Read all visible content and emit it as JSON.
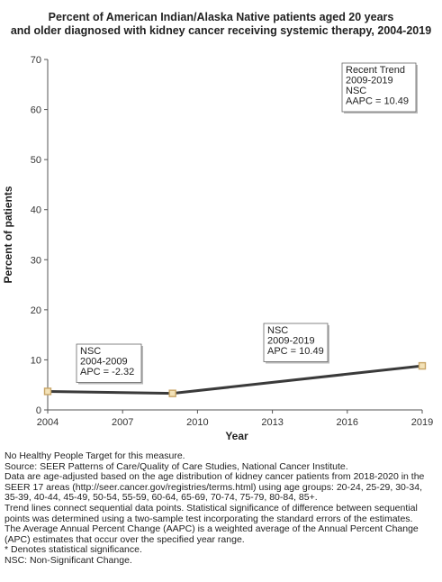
{
  "chart_data": {
    "type": "line",
    "title": "Percent of American Indian/Alaska Native patients aged 20 years and older diagnosed with kidney cancer receiving systemic therapy, 2004-2019",
    "title_lines": [
      "Percent of American Indian/Alaska Native patients aged 20 years",
      "and older diagnosed with kidney cancer receiving systemic therapy, 2004-2019"
    ],
    "xlabel": "Year",
    "ylabel": "Percent of patients",
    "xlim": [
      2004,
      2019
    ],
    "ylim": [
      0,
      70
    ],
    "x_ticks": [
      2004,
      2007,
      2010,
      2013,
      2016,
      2019
    ],
    "y_ticks": [
      0,
      10,
      20,
      30,
      40,
      50,
      60,
      70
    ],
    "grid": false,
    "points": [
      {
        "x": 2004,
        "y": 3.7
      },
      {
        "x": 2009,
        "y": 3.3
      },
      {
        "x": 2019,
        "y": 8.8
      }
    ],
    "trend_segments": [
      {
        "from": 2004,
        "to": 2009,
        "lines": [
          "NSC",
          "2004-2009",
          "APC = -2.32"
        ]
      },
      {
        "from": 2009,
        "to": 2019,
        "lines": [
          "NSC",
          "2009-2019",
          "APC = 10.49"
        ]
      }
    ],
    "recent_trend": {
      "lines": [
        "Recent Trend",
        "2009-2019",
        "NSC",
        "AAPC = 10.49"
      ]
    },
    "colors": {
      "line": "#3a3a3a",
      "marker_fill": "#f3e2b8",
      "marker_stroke": "#c8a566",
      "axis": "#555555"
    }
  },
  "notes": [
    "No Healthy People Target for this measure.",
    "Source: SEER Patterns of Care/Quality of Care Studies, National Cancer Institute.",
    "Data are age-adjusted based on the age distribution of kidney cancer patients from 2018-2020 in the SEER 17 areas (http://seer.cancer.gov/registries/terms.html) using age groups: 20-24, 25-29, 30-34, 35-39, 40-44, 45-49, 50-54, 55-59, 60-64, 65-69, 70-74, 75-79, 80-84, 85+.",
    "Trend lines connect sequential data points. Statistical significance of difference between sequential points was determined using a two-sample test incorporating the standard errors of the estimates.",
    "The Average Annual Percent Change (AAPC) is a weighted average of the Annual Percent Change (APC) estimates that occur over the specified year range.",
    "* Denotes statistical significance.",
    "NSC: Non-Significant Change."
  ]
}
